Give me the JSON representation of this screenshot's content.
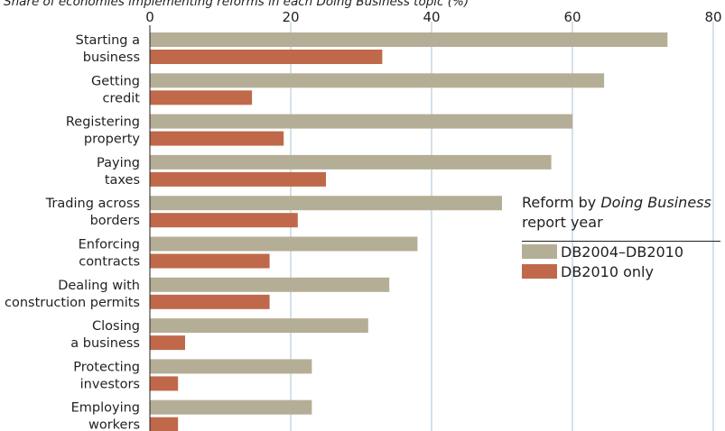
{
  "header": {
    "subtitle": "Share of economies implementing reforms in each Doing Business topic (%)"
  },
  "legend": {
    "title_prefix": "Reform by ",
    "title_italic": "Doing Business",
    "title_suffix": "report year",
    "items": [
      {
        "label": "DB2004–DB2010",
        "color": "#b5ae96"
      },
      {
        "label": "DB2010 only",
        "color": "#c0694a"
      }
    ]
  },
  "chart_data": {
    "type": "bar",
    "orientation": "horizontal",
    "categories": [
      [
        "Starting a",
        "business"
      ],
      [
        "Getting",
        "credit"
      ],
      [
        "Registering",
        "property"
      ],
      [
        "Paying",
        "taxes"
      ],
      [
        "Trading across",
        "borders"
      ],
      [
        "Enforcing",
        "contracts"
      ],
      [
        "Dealing with",
        "construction permits"
      ],
      [
        "Closing",
        "a business"
      ],
      [
        "Protecting",
        "investors"
      ],
      [
        "Employing",
        "workers"
      ]
    ],
    "series": [
      {
        "name": "DB2004–DB2010",
        "color": "#b5ae96",
        "values": [
          73.5,
          64.5,
          60,
          57,
          50,
          38,
          34,
          31,
          23,
          23
        ]
      },
      {
        "name": "DB2010 only",
        "color": "#c0694a",
        "values": [
          33,
          14.5,
          19,
          25,
          21,
          17,
          17,
          5,
          4,
          4
        ]
      }
    ],
    "xticks": [
      "0",
      "20",
      "40",
      "60",
      "80"
    ],
    "xlim": [
      0,
      80
    ],
    "grid": true,
    "legend_position": "right"
  }
}
